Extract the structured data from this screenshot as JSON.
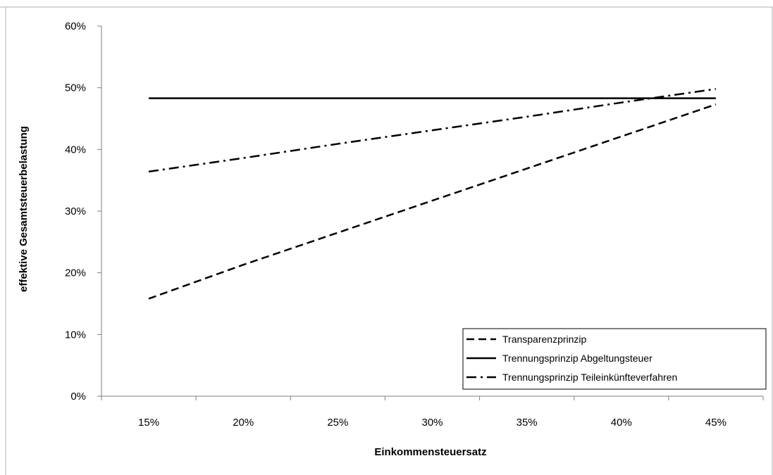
{
  "chart_data": {
    "type": "line",
    "title": "",
    "xlabel": "Einkommensteuersatz",
    "ylabel": "effektive Gesamtsteuerbelastung",
    "categories": [
      "15%",
      "20%",
      "25%",
      "30%",
      "35%",
      "40%",
      "45%"
    ],
    "x": [
      15,
      20,
      25,
      30,
      35,
      40,
      45
    ],
    "ylim": [
      0,
      60
    ],
    "yticks": [
      0,
      10,
      20,
      30,
      40,
      50,
      60
    ],
    "ytick_labels": [
      "0%",
      "10%",
      "20%",
      "30%",
      "40%",
      "50%",
      "60%"
    ],
    "grid": false,
    "legend_position": "bottom-right",
    "series": [
      {
        "name": "Transparenzprinzip",
        "style": "dashed",
        "color": "#000000",
        "values": [
          15.8,
          21.3,
          26.5,
          31.7,
          36.9,
          42.1,
          47.3
        ]
      },
      {
        "name": "Trennungsprinzip Abgeltungsteuer",
        "style": "solid",
        "color": "#000000",
        "values": [
          48.3,
          48.3,
          48.3,
          48.3,
          48.3,
          48.3,
          48.3
        ]
      },
      {
        "name": "Trennungsprinzip Teileinkünfteverfahren",
        "style": "dash-dot",
        "color": "#000000",
        "values": [
          36.4,
          38.6,
          40.9,
          43.1,
          45.3,
          47.6,
          49.8
        ]
      }
    ]
  }
}
